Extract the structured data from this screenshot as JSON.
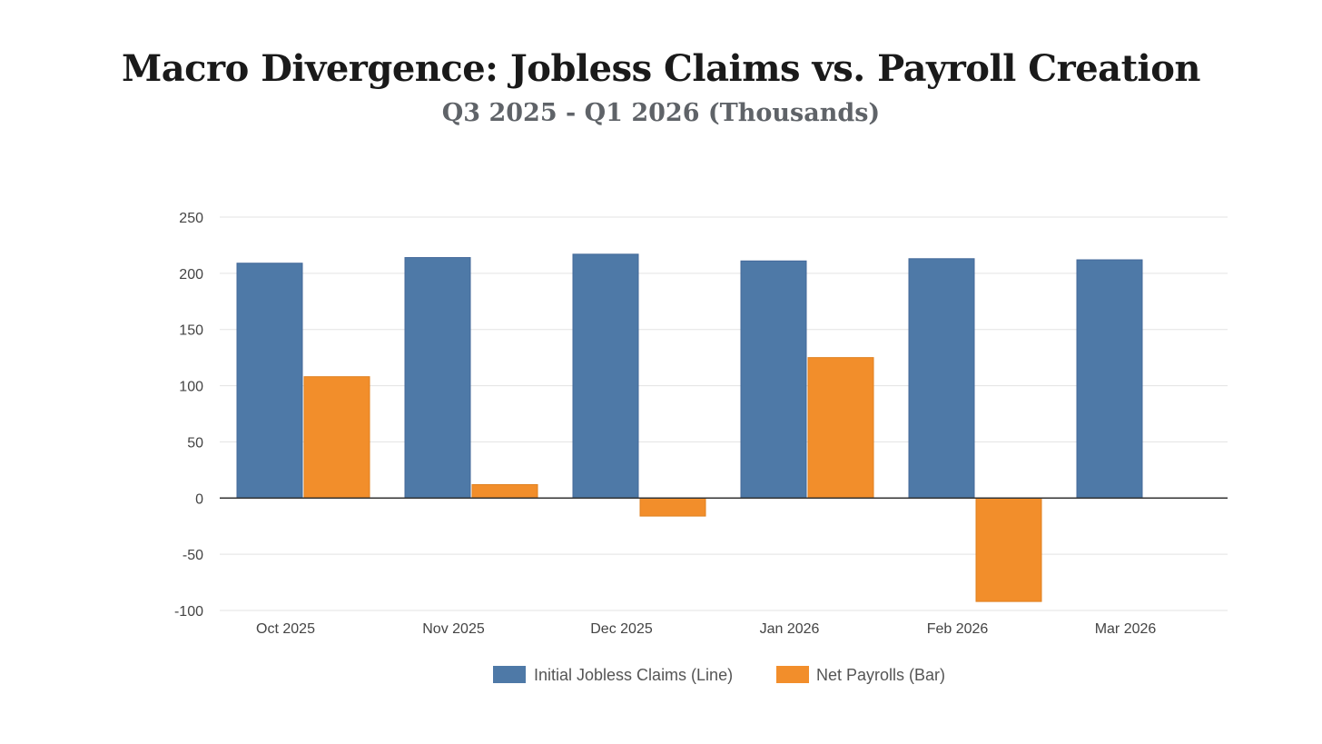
{
  "chart_data": {
    "type": "bar",
    "title": "Macro Divergence: Jobless Claims vs. Payroll Creation",
    "subtitle": "Q3 2025 - Q1 2026 (Thousands)",
    "categories": [
      "Oct 2025",
      "Nov 2025",
      "Dec 2025",
      "Jan 2026",
      "Feb 2026",
      "Mar 2026"
    ],
    "series": [
      {
        "name": "Initial Jobless Claims (Line)",
        "color": "#4e79a7",
        "values": [
          209,
          214,
          217,
          211,
          213,
          212
        ]
      },
      {
        "name": "Net Payrolls (Bar)",
        "color": "#f28e2b",
        "values": [
          108,
          12,
          -16,
          125,
          -92,
          null
        ]
      }
    ],
    "ylim": [
      -100,
      250
    ],
    "yticks": [
      250,
      200,
      150,
      100,
      50,
      0,
      -50,
      -100
    ],
    "grid": true,
    "legend": "bottom-center",
    "xlabel": "",
    "ylabel": ""
  }
}
